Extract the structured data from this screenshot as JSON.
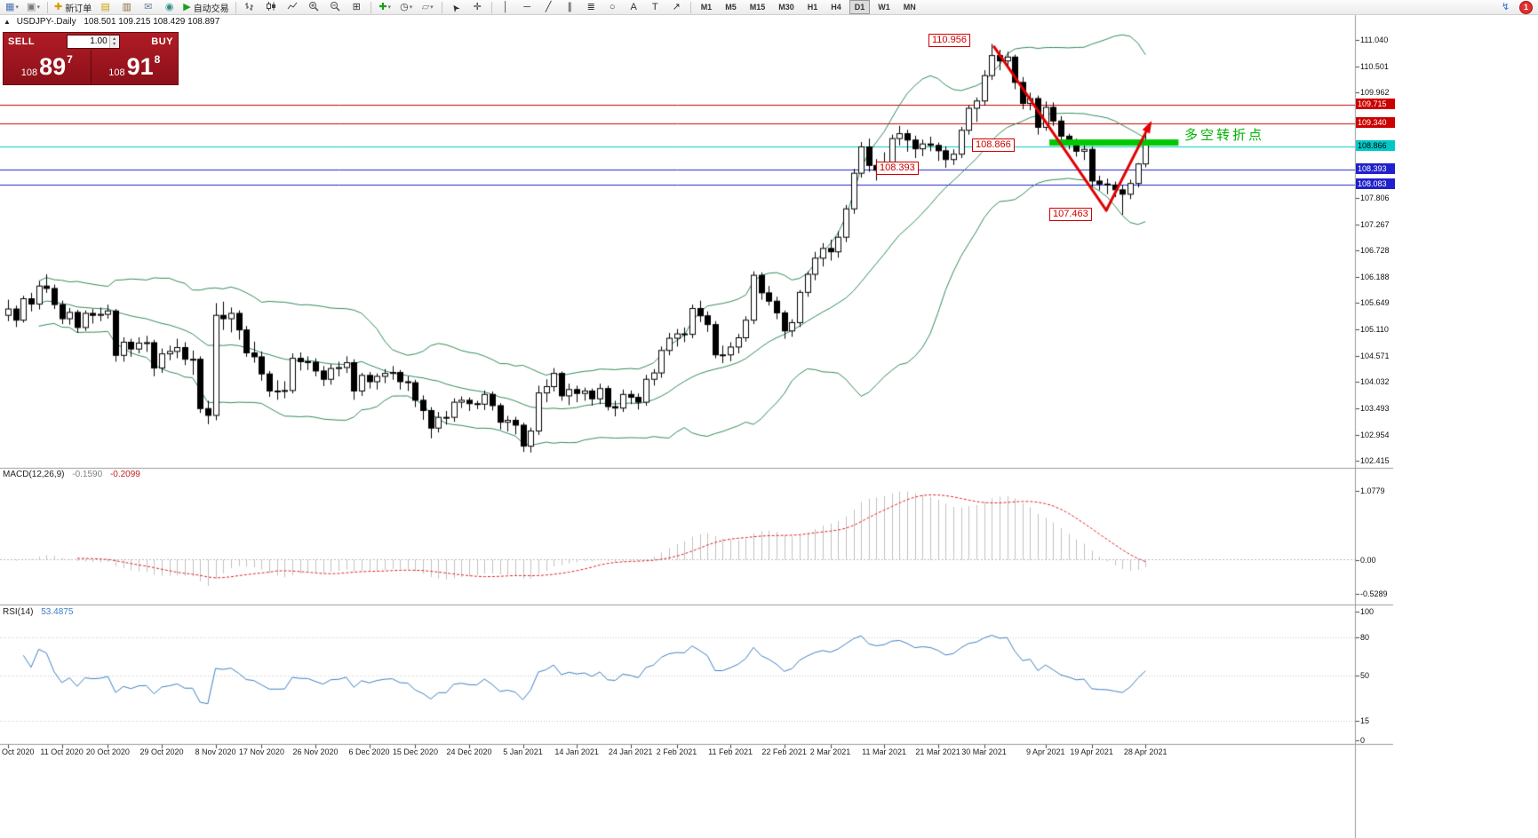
{
  "toolbar": {
    "new_order_label": "新订单",
    "autotrading_label": "自动交易",
    "timeframes": [
      "M1",
      "M5",
      "M15",
      "M30",
      "H1",
      "H4",
      "D1",
      "W1",
      "MN"
    ],
    "active_timeframe": "D1",
    "notification_count": "1"
  },
  "icons": {
    "collapse": "▲",
    "dropdown": "▾",
    "new_chart": "▦",
    "profiles": "▣",
    "new_order_plus": "✚",
    "market_watch": "▤",
    "data_window": "▥",
    "mailbox": "✉",
    "navigator": "◉",
    "autotrade_play": "▶",
    "tile": "⊞",
    "indicators_plus": "✚",
    "clock": "◷",
    "templates": "▱",
    "cursor": "➤",
    "crosshair": "✛",
    "vline": "│",
    "hline": "─",
    "trendline": "╱",
    "channel": "∥",
    "fibonacci": "≣",
    "ellipse": "○",
    "text": "A",
    "text_label": "T",
    "arrows": "↗",
    "bolt": "↯",
    "spin_up": "▴",
    "spin_down": "▾"
  },
  "chart_header": {
    "symbol_period": "USDJPY-.Daily",
    "ohlc": "108.501 109.215 108.429 108.897"
  },
  "trade_panel": {
    "sell_label": "SELL",
    "buy_label": "BUY",
    "volume": "1.00",
    "sell_small": "108",
    "sell_big": "89",
    "sell_sup": "7",
    "buy_small": "108",
    "buy_big": "91",
    "buy_sup": "8"
  },
  "annotations": {
    "peak": "110.956",
    "pivot": "108.866",
    "support": "108.393",
    "low": "107.463",
    "pivot_note": "多空转折点",
    "pivot_note_color": "#00b400"
  },
  "indicators": {
    "macd_label": "MACD(12,26,9)",
    "macd_value_main": "-0.1590",
    "macd_value_signal": "-0.2099",
    "rsi_label": "RSI(14)",
    "rsi_value": "53.4875"
  },
  "axes": {
    "price_max": 111.04,
    "price_min": 102.415,
    "price_step": 0.5390625,
    "highlighted_prices": [
      {
        "value": "109.715",
        "price": 109.715,
        "bg": "#cc0000",
        "fg": "#ffffff"
      },
      {
        "value": "109.340",
        "price": 109.34,
        "bg": "#cc0000",
        "fg": "#ffffff"
      },
      {
        "value": "108.866",
        "price": 108.866,
        "bg": "#00c8c8",
        "fg": "#000000"
      },
      {
        "value": "108.393",
        "price": 108.393,
        "bg": "#2020cc",
        "fg": "#ffffff"
      },
      {
        "value": "108.083",
        "price": 108.083,
        "bg": "#2020cc",
        "fg": "#ffffff"
      }
    ],
    "macd_labels": [
      {
        "text": "1.0779",
        "value": 1.0779
      },
      {
        "text": "0.00",
        "value": 0
      },
      {
        "text": "-0.5289",
        "value": -0.5289
      }
    ],
    "rsi_labels": [
      {
        "text": "100",
        "value": 100
      },
      {
        "text": "80",
        "value": 80
      },
      {
        "text": "50",
        "value": 50
      },
      {
        "text": "15",
        "value": 15
      },
      {
        "text": "0",
        "value": 0
      }
    ],
    "dates": [
      {
        "i": 0,
        "label": "Oct 2020"
      },
      {
        "i": 7,
        "label": "11 Oct 2020"
      },
      {
        "i": 13,
        "label": "20 Oct 2020"
      },
      {
        "i": 20,
        "label": "29 Oct 2020"
      },
      {
        "i": 27,
        "label": "8 Nov 2020"
      },
      {
        "i": 33,
        "label": "17 Nov 2020"
      },
      {
        "i": 40,
        "label": "26 Nov 2020"
      },
      {
        "i": 47,
        "label": "6 Dec 2020"
      },
      {
        "i": 53,
        "label": "15 Dec 2020"
      },
      {
        "i": 60,
        "label": "24 Dec 2020"
      },
      {
        "i": 67,
        "label": "5 Jan 2021"
      },
      {
        "i": 74,
        "label": "14 Jan 2021"
      },
      {
        "i": 81,
        "label": "24 Jan 2021"
      },
      {
        "i": 87,
        "label": "2 Feb 2021"
      },
      {
        "i": 94,
        "label": "11 Feb 2021"
      },
      {
        "i": 101,
        "label": "22 Feb 2021"
      },
      {
        "i": 107,
        "label": "2 Mar 2021"
      },
      {
        "i": 114,
        "label": "11 Mar 2021"
      },
      {
        "i": 121,
        "label": "21 Mar 2021"
      },
      {
        "i": 127,
        "label": "30 Mar 2021"
      },
      {
        "i": 135,
        "label": "9 Apr 2021"
      },
      {
        "i": 141,
        "label": "19 Apr 2021"
      },
      {
        "i": 148,
        "label": "28 Apr 2021"
      }
    ]
  },
  "chart_data": {
    "type": "candlestick",
    "symbol": "USDJPY",
    "period": "Daily",
    "candles": [
      [
        105.4,
        105.72,
        105.28,
        105.53
      ],
      [
        105.53,
        105.6,
        105.16,
        105.3
      ],
      [
        105.3,
        105.8,
        105.25,
        105.74
      ],
      [
        105.74,
        105.86,
        105.48,
        105.63
      ],
      [
        105.63,
        106.1,
        105.52,
        106.0
      ],
      [
        106.0,
        106.24,
        105.86,
        105.95
      ],
      [
        105.95,
        106.03,
        105.53,
        105.62
      ],
      [
        105.62,
        105.7,
        105.22,
        105.33
      ],
      [
        105.33,
        105.55,
        105.21,
        105.46
      ],
      [
        105.46,
        105.51,
        105.04,
        105.15
      ],
      [
        105.15,
        105.5,
        105.08,
        105.44
      ],
      [
        105.44,
        105.53,
        105.23,
        105.4
      ],
      [
        105.4,
        105.56,
        105.28,
        105.42
      ],
      [
        105.42,
        105.62,
        105.33,
        105.49
      ],
      [
        105.49,
        105.53,
        104.45,
        104.58
      ],
      [
        104.58,
        104.95,
        104.45,
        104.85
      ],
      [
        104.85,
        104.92,
        104.55,
        104.71
      ],
      [
        104.71,
        104.95,
        104.62,
        104.83
      ],
      [
        104.83,
        104.98,
        104.65,
        104.84
      ],
      [
        104.84,
        104.9,
        104.15,
        104.32
      ],
      [
        104.32,
        104.72,
        104.22,
        104.61
      ],
      [
        104.61,
        104.78,
        104.48,
        104.66
      ],
      [
        104.66,
        104.92,
        104.52,
        104.74
      ],
      [
        104.74,
        104.85,
        104.38,
        104.5
      ],
      [
        104.5,
        104.68,
        104.18,
        104.5
      ],
      [
        104.5,
        104.56,
        103.4,
        103.49
      ],
      [
        103.49,
        103.65,
        103.17,
        103.35
      ],
      [
        103.35,
        105.65,
        103.25,
        105.4
      ],
      [
        105.4,
        105.68,
        105.1,
        105.33
      ],
      [
        105.33,
        105.56,
        105.05,
        105.44
      ],
      [
        105.44,
        105.5,
        104.9,
        105.1
      ],
      [
        105.1,
        105.18,
        104.55,
        104.63
      ],
      [
        104.63,
        104.86,
        104.43,
        104.55
      ],
      [
        104.55,
        104.66,
        104.06,
        104.2
      ],
      [
        104.2,
        104.26,
        103.73,
        103.85
      ],
      [
        103.85,
        104.07,
        103.67,
        103.85
      ],
      [
        103.85,
        104.05,
        103.7,
        103.86
      ],
      [
        103.86,
        104.62,
        103.8,
        104.52
      ],
      [
        104.52,
        104.64,
        104.27,
        104.45
      ],
      [
        104.45,
        104.56,
        104.28,
        104.44
      ],
      [
        104.44,
        104.52,
        104.15,
        104.26
      ],
      [
        104.26,
        104.36,
        103.95,
        104.09
      ],
      [
        104.09,
        104.4,
        103.98,
        104.31
      ],
      [
        104.31,
        104.45,
        104.15,
        104.33
      ],
      [
        104.33,
        104.56,
        104.22,
        104.43
      ],
      [
        104.43,
        104.5,
        103.67,
        103.85
      ],
      [
        103.85,
        104.22,
        103.75,
        104.17
      ],
      [
        104.17,
        104.24,
        103.9,
        104.04
      ],
      [
        104.04,
        104.21,
        103.88,
        104.15
      ],
      [
        104.15,
        104.3,
        104.01,
        104.21
      ],
      [
        104.21,
        104.36,
        104.08,
        104.23
      ],
      [
        104.23,
        104.28,
        103.88,
        104.04
      ],
      [
        104.04,
        104.15,
        103.85,
        104.02
      ],
      [
        104.02,
        104.08,
        103.52,
        103.66
      ],
      [
        103.66,
        103.76,
        103.26,
        103.45
      ],
      [
        103.45,
        103.52,
        102.88,
        103.09
      ],
      [
        103.09,
        103.42,
        103.0,
        103.31
      ],
      [
        103.31,
        103.44,
        103.16,
        103.31
      ],
      [
        103.31,
        103.7,
        103.22,
        103.62
      ],
      [
        103.62,
        103.74,
        103.5,
        103.66
      ],
      [
        103.66,
        103.72,
        103.44,
        103.59
      ],
      [
        103.59,
        103.65,
        103.48,
        103.58
      ],
      [
        103.58,
        103.86,
        103.46,
        103.78
      ],
      [
        103.78,
        103.84,
        103.45,
        103.55
      ],
      [
        103.55,
        103.6,
        103.06,
        103.21
      ],
      [
        103.21,
        103.34,
        103.02,
        103.25
      ],
      [
        103.25,
        103.32,
        102.96,
        103.15
      ],
      [
        103.15,
        103.2,
        102.6,
        102.72
      ],
      [
        102.72,
        103.1,
        102.59,
        103.03
      ],
      [
        103.03,
        103.96,
        102.95,
        103.81
      ],
      [
        103.81,
        104.09,
        103.62,
        103.94
      ],
      [
        103.94,
        104.32,
        103.84,
        104.21
      ],
      [
        104.21,
        104.25,
        103.65,
        103.75
      ],
      [
        103.75,
        104.0,
        103.56,
        103.88
      ],
      [
        103.88,
        103.96,
        103.62,
        103.8
      ],
      [
        103.8,
        103.92,
        103.65,
        103.85
      ],
      [
        103.85,
        103.9,
        103.55,
        103.69
      ],
      [
        103.69,
        104.0,
        103.58,
        103.9
      ],
      [
        103.9,
        103.96,
        103.45,
        103.53
      ],
      [
        103.53,
        103.65,
        103.33,
        103.5
      ],
      [
        103.5,
        103.88,
        103.42,
        103.78
      ],
      [
        103.78,
        103.86,
        103.58,
        103.72
      ],
      [
        103.72,
        103.8,
        103.47,
        103.62
      ],
      [
        103.62,
        104.18,
        103.55,
        104.09
      ],
      [
        104.09,
        104.3,
        103.96,
        104.22
      ],
      [
        104.22,
        104.76,
        104.12,
        104.68
      ],
      [
        104.68,
        105.04,
        104.58,
        104.93
      ],
      [
        104.93,
        105.12,
        104.76,
        105.02
      ],
      [
        105.02,
        105.15,
        104.85,
        105.01
      ],
      [
        105.01,
        105.62,
        104.93,
        105.54
      ],
      [
        105.54,
        105.7,
        105.26,
        105.39
      ],
      [
        105.39,
        105.48,
        105.06,
        105.21
      ],
      [
        105.21,
        105.28,
        104.52,
        104.59
      ],
      [
        104.59,
        104.78,
        104.42,
        104.59
      ],
      [
        104.59,
        104.85,
        104.46,
        104.75
      ],
      [
        104.75,
        105.02,
        104.62,
        104.94
      ],
      [
        104.94,
        105.38,
        104.86,
        105.3
      ],
      [
        105.3,
        106.3,
        105.22,
        106.22
      ],
      [
        106.22,
        106.28,
        105.72,
        105.86
      ],
      [
        105.86,
        106.0,
        105.6,
        105.69
      ],
      [
        105.69,
        105.78,
        105.32,
        105.45
      ],
      [
        105.45,
        105.5,
        104.92,
        105.08
      ],
      [
        105.08,
        105.32,
        104.96,
        105.25
      ],
      [
        105.25,
        105.92,
        105.16,
        105.87
      ],
      [
        105.87,
        106.3,
        105.78,
        106.24
      ],
      [
        106.24,
        106.7,
        106.12,
        106.57
      ],
      [
        106.57,
        106.88,
        106.4,
        106.77
      ],
      [
        106.77,
        106.95,
        106.52,
        106.7
      ],
      [
        106.7,
        107.12,
        106.58,
        107.0
      ],
      [
        107.0,
        107.66,
        106.9,
        107.58
      ],
      [
        107.58,
        108.4,
        107.48,
        108.31
      ],
      [
        108.31,
        108.95,
        108.22,
        108.85
      ],
      [
        108.85,
        109.02,
        108.34,
        108.47
      ],
      [
        108.47,
        108.6,
        108.16,
        108.37
      ],
      [
        108.37,
        108.74,
        108.28,
        108.52
      ],
      [
        108.52,
        109.1,
        108.4,
        109.02
      ],
      [
        109.02,
        109.28,
        108.88,
        109.12
      ],
      [
        109.12,
        109.2,
        108.75,
        108.99
      ],
      [
        108.99,
        109.08,
        108.62,
        108.81
      ],
      [
        108.81,
        109.0,
        108.66,
        108.91
      ],
      [
        108.91,
        109.06,
        108.76,
        108.88
      ],
      [
        108.88,
        108.94,
        108.56,
        108.77
      ],
      [
        108.77,
        108.86,
        108.42,
        108.59
      ],
      [
        108.59,
        108.8,
        108.48,
        108.7
      ],
      [
        108.7,
        109.26,
        108.62,
        109.19
      ],
      [
        109.19,
        109.7,
        109.1,
        109.64
      ],
      [
        109.64,
        109.86,
        109.36,
        109.79
      ],
      [
        109.79,
        110.42,
        109.7,
        110.31
      ],
      [
        110.31,
        110.96,
        110.22,
        110.72
      ],
      [
        110.72,
        110.84,
        110.42,
        110.61
      ],
      [
        110.61,
        110.8,
        110.48,
        110.69
      ],
      [
        110.69,
        110.74,
        110.03,
        110.17
      ],
      [
        110.17,
        110.28,
        109.62,
        109.74
      ],
      [
        109.74,
        109.96,
        109.6,
        109.84
      ],
      [
        109.84,
        109.9,
        109.1,
        109.25
      ],
      [
        109.25,
        109.78,
        109.18,
        109.66
      ],
      [
        109.66,
        109.76,
        109.28,
        109.38
      ],
      [
        109.38,
        109.48,
        108.96,
        109.07
      ],
      [
        109.07,
        109.12,
        108.8,
        108.93
      ],
      [
        108.93,
        109.02,
        108.65,
        108.76
      ],
      [
        108.76,
        108.88,
        108.58,
        108.8
      ],
      [
        108.8,
        108.86,
        108.02,
        108.15
      ],
      [
        108.15,
        108.26,
        107.96,
        108.09
      ],
      [
        108.09,
        108.2,
        107.88,
        108.07
      ],
      [
        108.07,
        108.14,
        107.82,
        107.97
      ],
      [
        107.97,
        108.06,
        107.46,
        107.88
      ],
      [
        107.88,
        108.18,
        107.78,
        108.1
      ],
      [
        108.1,
        108.52,
        108.02,
        108.5
      ],
      [
        108.5,
        109.22,
        108.43,
        108.9
      ]
    ],
    "overlays": {
      "bollinger": {
        "period": 20,
        "deviation": 2,
        "color": "#2e8b57"
      },
      "hlines": [
        {
          "price": 109.715,
          "color": "#cc0000"
        },
        {
          "price": 109.34,
          "color": "#cc0000"
        },
        {
          "price": 108.866,
          "color": "#00c8c8"
        },
        {
          "price": 108.393,
          "color": "#2020cc"
        },
        {
          "price": 108.083,
          "color": "#2020cc"
        }
      ],
      "green_zone": {
        "from_i": 135.5,
        "to_i": 152.3,
        "price": 108.93,
        "color": "#00c800"
      },
      "trend_lines": [
        {
          "from": {
            "i": 128.3,
            "p": 110.9
          },
          "to": {
            "i": 142.9,
            "p": 107.55
          },
          "color": "#e00000",
          "arrow": false
        },
        {
          "from": {
            "i": 142.9,
            "p": 107.55
          },
          "to": {
            "i": 148.6,
            "p": 109.32
          },
          "color": "#e00000",
          "arrow": true
        }
      ]
    },
    "macd": {
      "fast": 12,
      "slow": 26,
      "signal": 9,
      "histogram_color": "#c0c0c0",
      "signal_color": "#e02020"
    },
    "rsi": {
      "period": 14,
      "color": "#3e7fc1",
      "levels": [
        80,
        50,
        15
      ]
    }
  }
}
